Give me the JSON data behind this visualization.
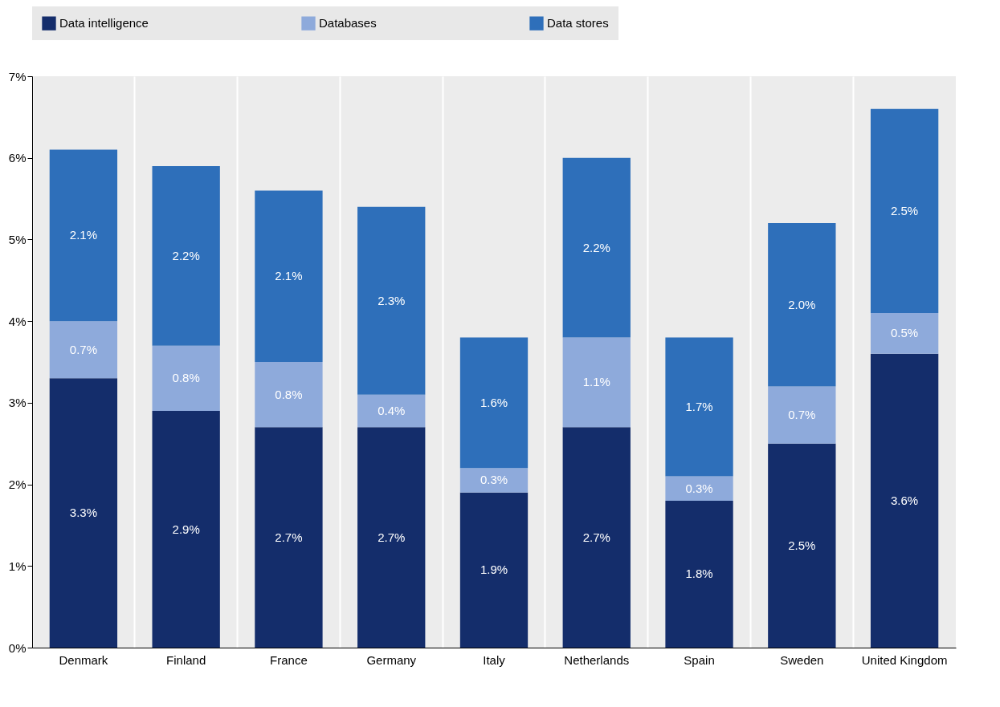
{
  "chart_data": {
    "type": "bar",
    "stacked": true,
    "categories": [
      "Denmark",
      "Finland",
      "France",
      "Germany",
      "Italy",
      "Netherlands",
      "Spain",
      "Sweden",
      "United Kingdom"
    ],
    "series": [
      {
        "name": "Data intelligence",
        "color": "#142d6b",
        "values": [
          3.3,
          2.9,
          2.7,
          2.7,
          1.9,
          2.7,
          1.8,
          2.5,
          3.6
        ],
        "value_labels": [
          "3.3%",
          "2.9%",
          "2.7%",
          "2.7%",
          "1.9%",
          "2.7%",
          "1.8%",
          "2.5%",
          "3.6%"
        ]
      },
      {
        "name": "Databases",
        "color": "#8eaadb",
        "values": [
          0.7,
          0.8,
          0.8,
          0.4,
          0.3,
          1.1,
          0.3,
          0.7,
          0.5
        ],
        "value_labels": [
          "0.7%",
          "0.8%",
          "0.8%",
          "0.4%",
          "0.3%",
          "1.1%",
          "0.3%",
          "0.7%",
          "0.5%"
        ]
      },
      {
        "name": "Data stores",
        "color": "#2e6fba",
        "values": [
          2.1,
          2.2,
          2.1,
          2.3,
          1.6,
          2.2,
          1.7,
          2.0,
          2.5
        ],
        "value_labels": [
          "2.1%",
          "2.2%",
          "2.1%",
          "2.3%",
          "1.6%",
          "2.2%",
          "1.7%",
          "2.0%",
          "2.5%"
        ]
      }
    ],
    "ylim": [
      0,
      7
    ],
    "yticks": [
      {
        "value": 0,
        "label": "0%"
      },
      {
        "value": 1,
        "label": "1%"
      },
      {
        "value": 2,
        "label": "2%"
      },
      {
        "value": 3,
        "label": "3%"
      },
      {
        "value": 4,
        "label": "4%"
      },
      {
        "value": 5,
        "label": "5%"
      },
      {
        "value": 6,
        "label": "6%"
      },
      {
        "value": 7,
        "label": "7%"
      }
    ],
    "grid": "x",
    "legend": "top"
  }
}
